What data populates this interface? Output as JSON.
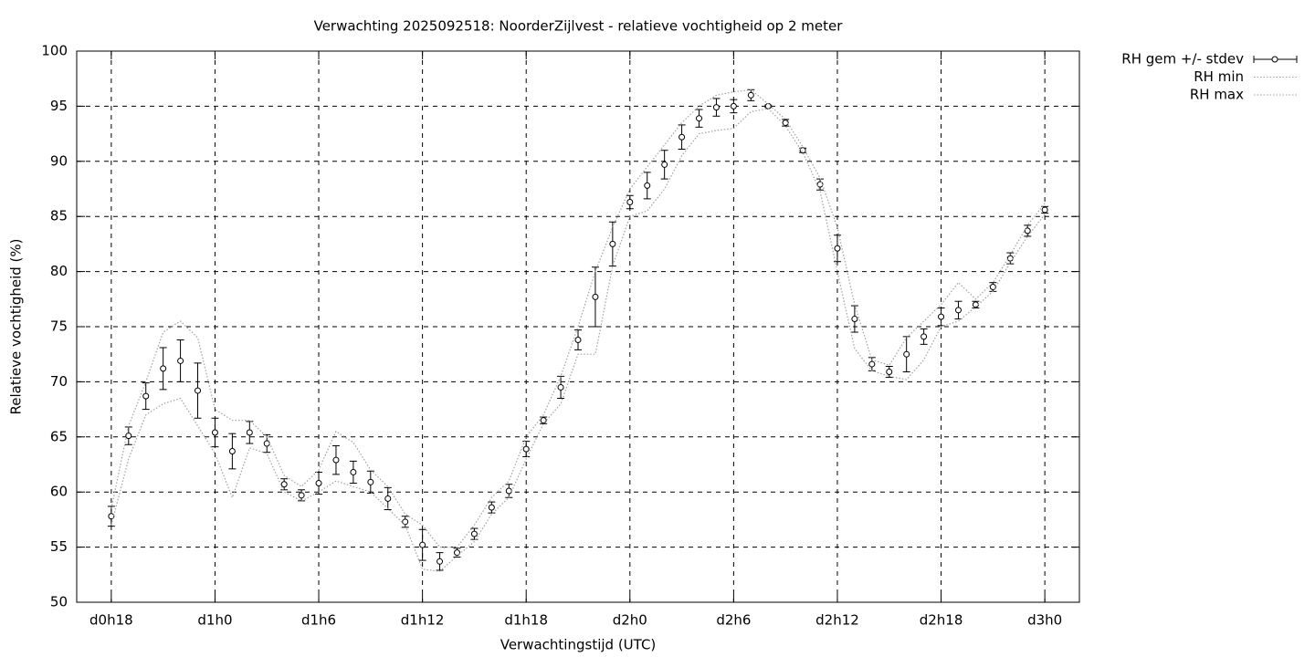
{
  "chart_data": {
    "type": "line",
    "title": "Verwachting 2025092518: NoorderZijlvest - relatieve vochtigheid op 2 meter",
    "xlabel": "Verwachtingstijd (UTC)",
    "ylabel": "Relatieve vochtigheid (%)",
    "x": [
      18,
      19,
      20,
      21,
      22,
      23,
      24,
      25,
      26,
      27,
      28,
      29,
      30,
      31,
      32,
      33,
      34,
      35,
      36,
      37,
      38,
      39,
      40,
      41,
      42,
      43,
      44,
      45,
      46,
      47,
      48,
      49,
      50,
      51,
      52,
      53,
      54,
      55,
      56,
      57,
      58,
      59,
      60,
      61,
      62,
      63,
      64,
      65,
      66,
      67,
      68,
      69,
      70,
      71,
      72
    ],
    "series": [
      {
        "name": "RH gem +/- stdev",
        "color": "#000000",
        "values": [
          57.8,
          65.1,
          68.7,
          71.2,
          71.9,
          69.2,
          65.4,
          63.7,
          65.4,
          64.4,
          60.7,
          59.7,
          60.8,
          62.9,
          61.8,
          60.9,
          59.4,
          57.3,
          55.2,
          53.7,
          54.5,
          56.2,
          58.6,
          60.1,
          63.9,
          66.5,
          69.5,
          73.8,
          77.7,
          82.5,
          86.3,
          87.8,
          89.7,
          92.2,
          93.9,
          94.9,
          95.0,
          96.0,
          95.0,
          93.5,
          91.0,
          87.9,
          82.1,
          75.7,
          71.6,
          70.9,
          72.5,
          74.1,
          75.9,
          76.5,
          77.0,
          78.6,
          81.2,
          83.7,
          85.6
        ],
        "errors": [
          0.9,
          0.8,
          1.2,
          1.9,
          1.9,
          2.5,
          1.3,
          1.6,
          1.0,
          0.8,
          0.5,
          0.5,
          1.0,
          1.3,
          1.0,
          1.0,
          1.0,
          0.5,
          1.4,
          0.8,
          0.4,
          0.5,
          0.5,
          0.6,
          0.7,
          0.3,
          1.0,
          0.9,
          2.7,
          2.0,
          0.6,
          1.2,
          1.3,
          1.1,
          0.8,
          0.8,
          0.6,
          0.5,
          0.1,
          0.3,
          0.2,
          0.5,
          1.2,
          1.2,
          0.6,
          0.5,
          1.6,
          0.7,
          0.8,
          0.8,
          0.3,
          0.4,
          0.5,
          0.5,
          0.3
        ]
      },
      {
        "name": "RH min",
        "color": "#a0a0a0",
        "values": [
          57,
          63,
          67,
          68,
          68.5,
          66,
          63.5,
          59.5,
          64,
          63.5,
          60,
          59.2,
          60,
          61,
          60.5,
          60,
          58.5,
          57,
          53,
          52.8,
          54.2,
          55.5,
          58,
          59.5,
          63,
          66.2,
          68,
          72.5,
          72.5,
          80.5,
          85,
          85.5,
          87.5,
          90.5,
          92.5,
          92.8,
          93,
          94.5,
          94.8,
          93.2,
          90.8,
          87.3,
          80,
          73,
          71,
          70.5,
          70.2,
          72,
          75,
          75.5,
          76.8,
          78.2,
          80.8,
          83.2,
          85.2
        ]
      },
      {
        "name": "RH max",
        "color": "#a0a0a0",
        "values": [
          58.5,
          66,
          70,
          74.5,
          75.5,
          74,
          67.5,
          66.5,
          66.5,
          65,
          61.5,
          60.5,
          62,
          65.5,
          64.5,
          62,
          60.5,
          58,
          57,
          55,
          55,
          57,
          59.5,
          61,
          65,
          67,
          70.5,
          75,
          80,
          84,
          87.5,
          89.5,
          91.5,
          93.5,
          95,
          96,
          96.3,
          96.5,
          95.2,
          93.8,
          91.3,
          88.5,
          84,
          77,
          72,
          71.5,
          74,
          75.5,
          77,
          79,
          77.5,
          79,
          81.5,
          84.2,
          86.2
        ]
      }
    ],
    "xlim": [
      16,
      74
    ],
    "xticks": [
      {
        "value": 18,
        "label": "d0h18"
      },
      {
        "value": 24,
        "label": "d1h0"
      },
      {
        "value": 30,
        "label": "d1h6"
      },
      {
        "value": 36,
        "label": "d1h12"
      },
      {
        "value": 42,
        "label": "d1h18"
      },
      {
        "value": 48,
        "label": "d2h0"
      },
      {
        "value": 54,
        "label": "d2h6"
      },
      {
        "value": 60,
        "label": "d2h12"
      },
      {
        "value": 66,
        "label": "d2h18"
      },
      {
        "value": 72,
        "label": "d3h0"
      }
    ],
    "ylim": [
      50,
      100
    ],
    "yticks": [
      50,
      55,
      60,
      65,
      70,
      75,
      80,
      85,
      90,
      95,
      100
    ],
    "grid": true,
    "legend": "outside-top-right"
  }
}
